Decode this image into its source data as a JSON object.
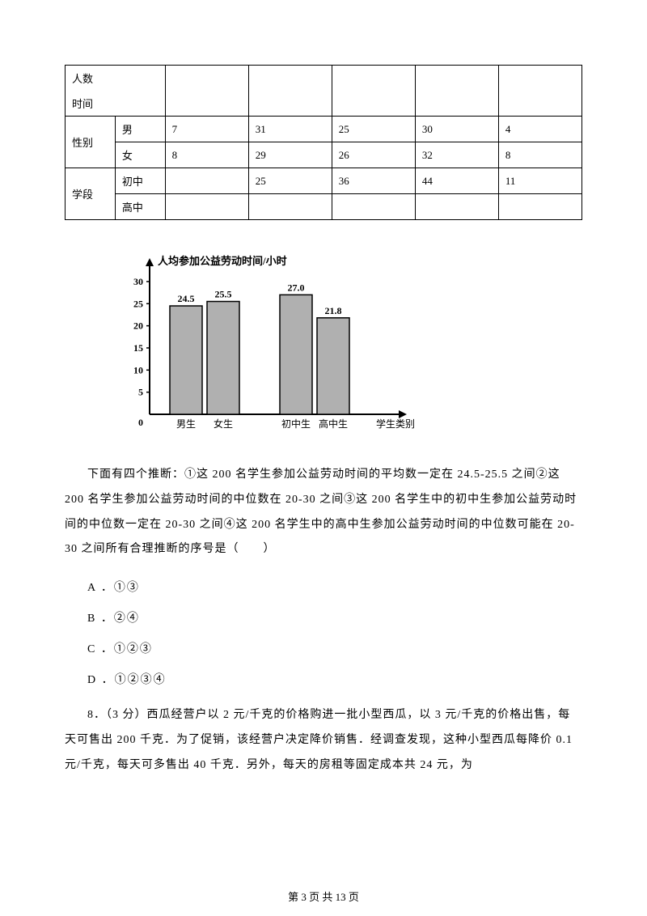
{
  "table": {
    "header": {
      "top": "人数",
      "bottom": "时间"
    },
    "row_labels": {
      "gender": "性别",
      "stage": "学段",
      "male": "男",
      "female": "女",
      "middle": "初中",
      "high": "高中"
    },
    "male": [
      "7",
      "31",
      "25",
      "30",
      "4"
    ],
    "female": [
      "8",
      "29",
      "26",
      "32",
      "8"
    ],
    "middle": [
      "",
      "25",
      "36",
      "44",
      "11"
    ],
    "high": [
      "",
      "",
      "",
      "",
      ""
    ]
  },
  "chart": {
    "type": "bar",
    "title": "人均参加公益劳动时间/小时",
    "x_title": "学生类别",
    "categories": [
      "男生",
      "女生",
      "初中生",
      "高中生"
    ],
    "values": [
      24.5,
      25.5,
      27.0,
      21.8
    ],
    "value_labels": [
      "24.5",
      "25.5",
      "27.0",
      "21.8"
    ],
    "bar_color": "#b0b0b0",
    "bar_stroke": "#000000",
    "background_color": "#ffffff",
    "axis_color": "#000000",
    "ylim": [
      0,
      32
    ],
    "yticks": [
      5,
      10,
      15,
      20,
      25,
      30
    ],
    "group_gap": true,
    "title_fontsize": 13,
    "label_fontsize": 12,
    "tick_fontsize": 12
  },
  "question": {
    "main": "下面有四个推断：①这 200 名学生参加公益劳动时间的平均数一定在 24.5-25.5 之间②这 200 名学生参加公益劳动时间的中位数在 20-30 之间③这 200 名学生中的初中生参加公益劳动时间的中位数一定在 20-30 之间④这 200 名学生中的高中生参加公益劳动时间的中位数可能在 20-30 之间所有合理推断的序号是（　　）",
    "options": {
      "A": "A ．①③",
      "B": "B ．②④",
      "C": "C ．①②③",
      "D": "D ．①②③④"
    }
  },
  "q8": "8．（3 分）西瓜经营户以 2 元/千克的价格购进一批小型西瓜，以 3 元/千克的价格出售，每天可售出 200 千克．为了促销，该经营户决定降价销售．经调查发现，这种小型西瓜每降价 0.1 元/千克，每天可多售出 40 千克．另外，每天的房租等固定成本共 24 元，为",
  "footer": "第 3 页 共 13 页"
}
